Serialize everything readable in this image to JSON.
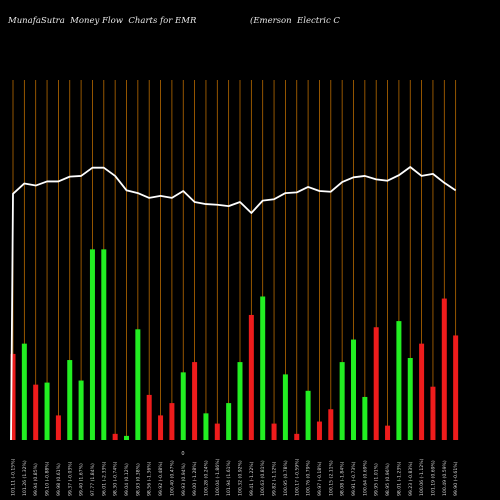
{
  "header": {
    "left_title": "MunafaSutra  Money Flow  Charts for EMR",
    "right_title": "(Emerson  Electric C"
  },
  "colors": {
    "background": "#000000",
    "gridline": "#b86a00",
    "up_bar": "#22ee22",
    "down_bar": "#ee1c1c",
    "price_line": "#ffffff"
  },
  "chart_data": {
    "type": "bar",
    "title": "MunafaSutra  Money Flow  Charts for EMR",
    "subtitle": "(Emerson  Electric C",
    "value_axis": "hidden",
    "grid": "vertical",
    "axis_zero_label": "0",
    "categories": [
      "101.11 (-0.15%)",
      "101.26 (1.32%)",
      "99.94 (0.85%)",
      "99.10 (-0.88%)",
      "99.98 (0.61%)",
      "99.37 (-0.03%)",
      "99.40 (1.67%)",
      "97.77 (1.84%)",
      "96.01 (-2.33%)",
      "98.30 (-0.74%)",
      "99.04 (0.12%)",
      "98.93 (0.38%)",
      "98.56 (-1.36%)",
      "99.92 (-0.48%)",
      "100.40 (0.47%)",
      "99.93 (0.94%)",
      "99.00 (-1.28%)",
      "100.28 (0.24%)",
      "100.04 (-1.86%)",
      "101.94 (1.61%)",
      "100.32 (0.92%)",
      "99.41 (-1.22%)",
      "100.63 (0.81%)",
      "99.82 (-1.12%)",
      "100.95 (0.78%)",
      "100.17 (-0.59%)",
      "100.76 (0.79%)",
      "99.97 (-0.18%)",
      "100.15 (2.11%)",
      "98.08 (-1.84%)",
      "99.91 (-0.73%)",
      "100.64 (0.69%)",
      "99.95 (1.01%)",
      "98.95 (0.96%)",
      "98.01 (-1.23%)",
      "99.23 (-0.83%)",
      "100.06 (-1.12%)",
      "101.19 (0.69%)",
      "100.49 (0.59%)",
      "99.90 (-0.61%)"
    ],
    "series": [
      {
        "kind": "money_flow_bars",
        "values": [
          0.42,
          0.47,
          0.27,
          0.28,
          0.12,
          0.39,
          0.29,
          0.93,
          0.93,
          0.03,
          0.02,
          0.54,
          0.22,
          0.12,
          0.18,
          0.33,
          0.38,
          0.13,
          0.08,
          0.18,
          0.38,
          0.61,
          0.7,
          0.08,
          0.32,
          0.03,
          0.24,
          0.09,
          0.15,
          0.38,
          0.49,
          0.21,
          0.55,
          0.07,
          0.58,
          0.4,
          0.47,
          0.26,
          0.69,
          0.51
        ],
        "directions": [
          "down",
          "up",
          "down",
          "up",
          "down",
          "up",
          "up",
          "up",
          "up",
          "down",
          "up",
          "up",
          "down",
          "down",
          "down",
          "up",
          "down",
          "up",
          "down",
          "up",
          "up",
          "down",
          "up",
          "down",
          "up",
          "down",
          "up",
          "down",
          "down",
          "up",
          "up",
          "up",
          "down",
          "down",
          "up",
          "up",
          "down",
          "down",
          "down",
          "down"
        ]
      },
      {
        "kind": "price_line",
        "values": [
          99.8,
          101.3,
          101.0,
          101.6,
          101.6,
          102.3,
          102.4,
          103.6,
          103.6,
          102.4,
          100.3,
          99.9,
          99.2,
          99.5,
          99.2,
          100.2,
          98.6,
          98.3,
          98.2,
          98.0,
          98.6,
          97.0,
          98.8,
          99.0,
          99.9,
          100.0,
          100.8,
          100.2,
          100.1,
          101.5,
          102.2,
          102.4,
          101.9,
          101.7,
          102.5,
          103.7,
          102.4,
          102.7,
          101.4,
          100.3
        ]
      }
    ],
    "ylim": [
      0,
      1
    ]
  }
}
